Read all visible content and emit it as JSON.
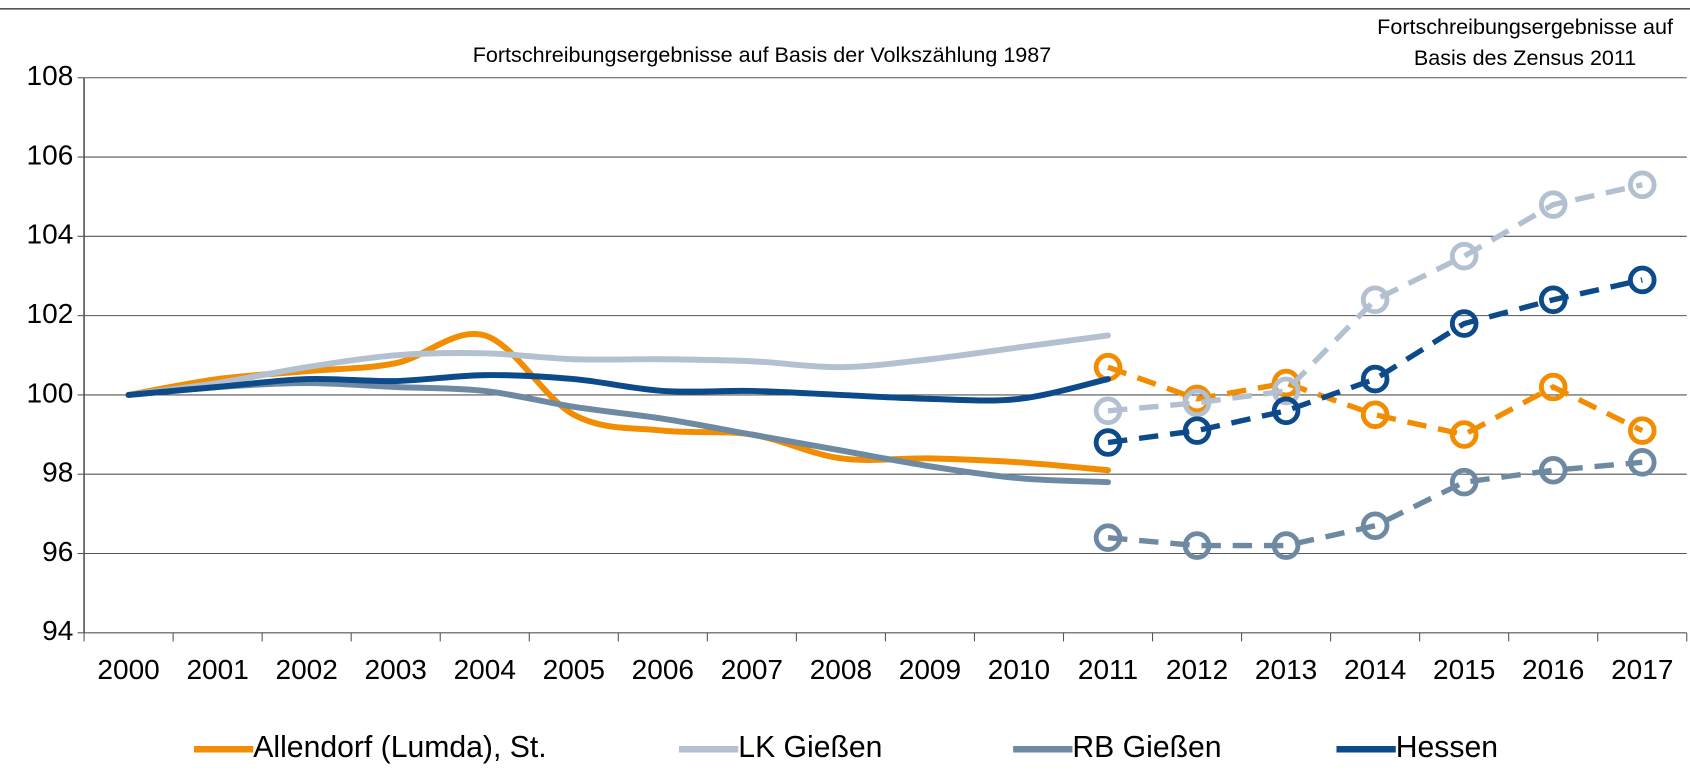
{
  "chart_data": {
    "type": "line",
    "annotations": [
      "Fortschreibungsergebnisse auf Basis der Volkszählung 1987",
      "Fortschreibungsergebnisse auf",
      "Basis des Zensus 2011"
    ],
    "categories": [
      "2000",
      "2001",
      "2002",
      "2003",
      "2004",
      "2005",
      "2006",
      "2007",
      "2008",
      "2009",
      "2010",
      "2011",
      "2012",
      "2013",
      "2014",
      "2015",
      "2016",
      "2017"
    ],
    "series": [
      {
        "name": "Allendorf (Lumda), St.",
        "color": "#f28c00",
        "values": [
          100,
          100.4,
          100.6,
          100.8,
          101.5,
          99.5,
          99.1,
          99.0,
          98.4,
          98.4,
          98.3,
          98.1,
          null,
          null,
          null,
          null,
          null,
          null
        ],
        "values_zensus": [
          null,
          null,
          null,
          null,
          null,
          null,
          null,
          null,
          null,
          null,
          null,
          100.7,
          99.9,
          100.3,
          99.5,
          99.0,
          100.2,
          99.1
        ]
      },
      {
        "name": "LK Gießen",
        "color": "#b2c0d0",
        "values": [
          100,
          100.3,
          100.7,
          101.0,
          101.05,
          100.9,
          100.9,
          100.85,
          100.7,
          100.9,
          101.2,
          101.5,
          null,
          null,
          null,
          null,
          null,
          null
        ],
        "values_zensus": [
          null,
          null,
          null,
          null,
          null,
          null,
          null,
          null,
          null,
          null,
          null,
          99.6,
          99.8,
          100.1,
          102.4,
          103.5,
          104.8,
          105.3
        ]
      },
      {
        "name": "RB Gießen",
        "color": "#6e8aa3",
        "values": [
          100,
          100.2,
          100.3,
          100.2,
          100.1,
          99.7,
          99.4,
          99.0,
          98.6,
          98.2,
          97.9,
          97.8,
          null,
          null,
          null,
          null,
          null,
          null
        ],
        "values_zensus": [
          null,
          null,
          null,
          null,
          null,
          null,
          null,
          null,
          null,
          null,
          null,
          96.4,
          96.2,
          96.2,
          96.7,
          97.8,
          98.1,
          98.3
        ]
      },
      {
        "name": "Hessen",
        "color": "#0d4a8a",
        "values": [
          100,
          100.2,
          100.4,
          100.35,
          100.5,
          100.4,
          100.1,
          100.1,
          100.0,
          99.9,
          99.9,
          100.4,
          null,
          null,
          null,
          null,
          null,
          null
        ],
        "values_zensus": [
          null,
          null,
          null,
          null,
          null,
          null,
          null,
          null,
          null,
          null,
          null,
          98.8,
          99.1,
          99.6,
          100.4,
          101.8,
          102.4,
          102.9
        ]
      }
    ],
    "ylim": [
      94,
      108
    ],
    "yticks": [
      94,
      96,
      98,
      100,
      102,
      104,
      106,
      108
    ],
    "grid": true,
    "legend": "bottom"
  }
}
